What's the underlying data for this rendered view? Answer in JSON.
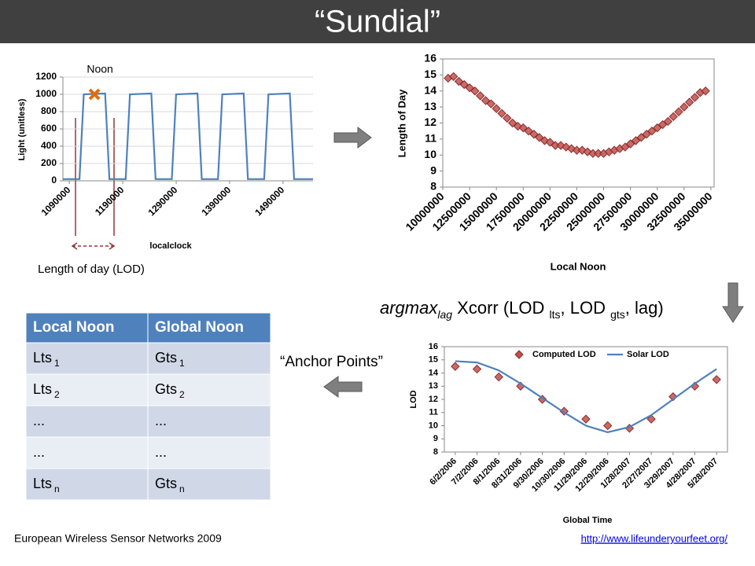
{
  "title": "“Sundial”",
  "chart_data": [
    {
      "type": "line",
      "ylabel": "Light (unitless)",
      "xlabel": "localclock",
      "color": "#4f81bd",
      "grid": true,
      "x": [
        1078000,
        1109000,
        1117000,
        1157000,
        1165000,
        1195400,
        1203400,
        1243400,
        1251400,
        1281800,
        1289800,
        1329800,
        1337800,
        1368200,
        1376200,
        1416200,
        1424200,
        1454600,
        1462600,
        1502600,
        1510600,
        1546000
      ],
      "values": [
        20,
        20,
        1000,
        1010,
        20,
        20,
        1000,
        1010,
        20,
        20,
        1000,
        1010,
        20,
        20,
        1000,
        1010,
        20,
        20,
        1000,
        1010,
        20,
        20
      ],
      "xlim": [
        1078000,
        1546000
      ],
      "xticks": [
        1090000,
        1190000,
        1290000,
        1390000,
        1490000
      ],
      "ylim": [
        0,
        1200
      ],
      "yticks": [
        0,
        200,
        400,
        600,
        800,
        1000,
        1200
      ],
      "annotation": {
        "text": "Noon",
        "x": 1137000,
        "y": 1000,
        "color": "#e36c09"
      },
      "note": "Length of day (LOD)"
    },
    {
      "type": "scatter",
      "ylabel": "Length of Day",
      "xlabel": "Local Noon",
      "color": "#c0504d",
      "frame": true,
      "x": [
        10500000,
        11000000,
        11500000,
        12000000,
        12500000,
        13000000,
        13500000,
        14000000,
        14500000,
        15000000,
        15500000,
        16000000,
        16500000,
        17000000,
        17500000,
        18000000,
        18500000,
        19000000,
        19500000,
        20000000,
        20500000,
        21000000,
        21500000,
        22000000,
        22500000,
        23000000,
        23500000,
        24000000,
        24500000,
        25000000,
        25500000,
        26000000,
        26500000,
        27000000,
        27500000,
        28000000,
        28500000,
        29000000,
        29500000,
        30000000,
        30500000,
        31000000,
        31500000,
        32000000,
        32500000,
        33000000,
        33500000,
        34000000,
        34500000
      ],
      "values": [
        14.8,
        14.9,
        14.6,
        14.4,
        14.2,
        14.0,
        13.7,
        13.4,
        13.2,
        12.9,
        12.6,
        12.3,
        12.0,
        11.8,
        11.7,
        11.5,
        11.3,
        11.1,
        10.9,
        10.8,
        10.6,
        10.6,
        10.5,
        10.4,
        10.3,
        10.3,
        10.2,
        10.1,
        10.1,
        10.1,
        10.2,
        10.3,
        10.4,
        10.5,
        10.7,
        10.9,
        11.1,
        11.3,
        11.5,
        11.7,
        11.9,
        12.1,
        12.4,
        12.7,
        13.0,
        13.3,
        13.6,
        13.9,
        14.0
      ],
      "xlim": [
        10000000,
        35300000
      ],
      "xticks": [
        10000000,
        12500000,
        15000000,
        17500000,
        20000000,
        22500000,
        25000000,
        27500000,
        30000000,
        32500000,
        35000000
      ],
      "ylim": [
        8,
        16
      ],
      "yticks": [
        8,
        9,
        10,
        11,
        12,
        13,
        14,
        15,
        16
      ]
    },
    {
      "type": "line",
      "ylabel": "LOD",
      "xlabel": "Global Time",
      "frame": true,
      "legend": "top",
      "categories": [
        "6/2/2006",
        "7/2/2006",
        "8/1/2006",
        "8/31/2006",
        "9/30/2006",
        "10/30/2006",
        "11/29/2006",
        "12/29/2006",
        "1/28/2007",
        "2/27/2007",
        "3/29/2007",
        "4/28/2007",
        "5/28/2007"
      ],
      "series": [
        {
          "name": "Computed LOD",
          "color": "#c0504d",
          "mode": "markers",
          "values": [
            14.5,
            14.3,
            13.7,
            13.0,
            12.0,
            11.1,
            10.5,
            10.0,
            9.8,
            10.5,
            12.2,
            13.0,
            13.5
          ]
        },
        {
          "name": "Solar LOD",
          "color": "#4f81bd",
          "mode": "lines",
          "values": [
            14.9,
            14.8,
            14.2,
            13.2,
            12.1,
            11.0,
            10.0,
            9.5,
            9.9,
            10.8,
            12.0,
            13.2,
            14.3
          ]
        }
      ],
      "ylim": [
        8,
        16
      ],
      "yticks": [
        8,
        9,
        10,
        11,
        12,
        13,
        14,
        15,
        16
      ]
    }
  ],
  "formula": [
    {
      "text": "argmax",
      "italic": true
    },
    {
      "text": "lag",
      "italic": true,
      "sub": true
    },
    {
      "text": " Xcorr (LOD "
    },
    {
      "text": "lts",
      "sub": true
    },
    {
      "text": ", LOD "
    },
    {
      "text": "gts",
      "sub": true
    },
    {
      "text": ", lag)"
    }
  ],
  "anchor_label": "“Anchor Points”",
  "table": {
    "header": [
      "Local Noon",
      "Global Noon"
    ],
    "rows": [
      [
        {
          "text": "Lts",
          "sub": "1"
        },
        {
          "text": "Gts",
          "sub": "1"
        }
      ],
      [
        {
          "text": "Lts",
          "sub": "2"
        },
        {
          "text": "Gts",
          "sub": "2"
        }
      ],
      [
        {
          "text": "..."
        },
        {
          "text": "..."
        }
      ],
      [
        {
          "text": "..."
        },
        {
          "text": "..."
        }
      ],
      [
        {
          "text": "Lts",
          "sub": "n"
        },
        {
          "text": "Gts",
          "sub": "n"
        }
      ]
    ]
  },
  "footer": {
    "left": "European Wireless Sensor Networks 2009",
    "link": "http://www.lifeunderyourfeet.org/"
  }
}
